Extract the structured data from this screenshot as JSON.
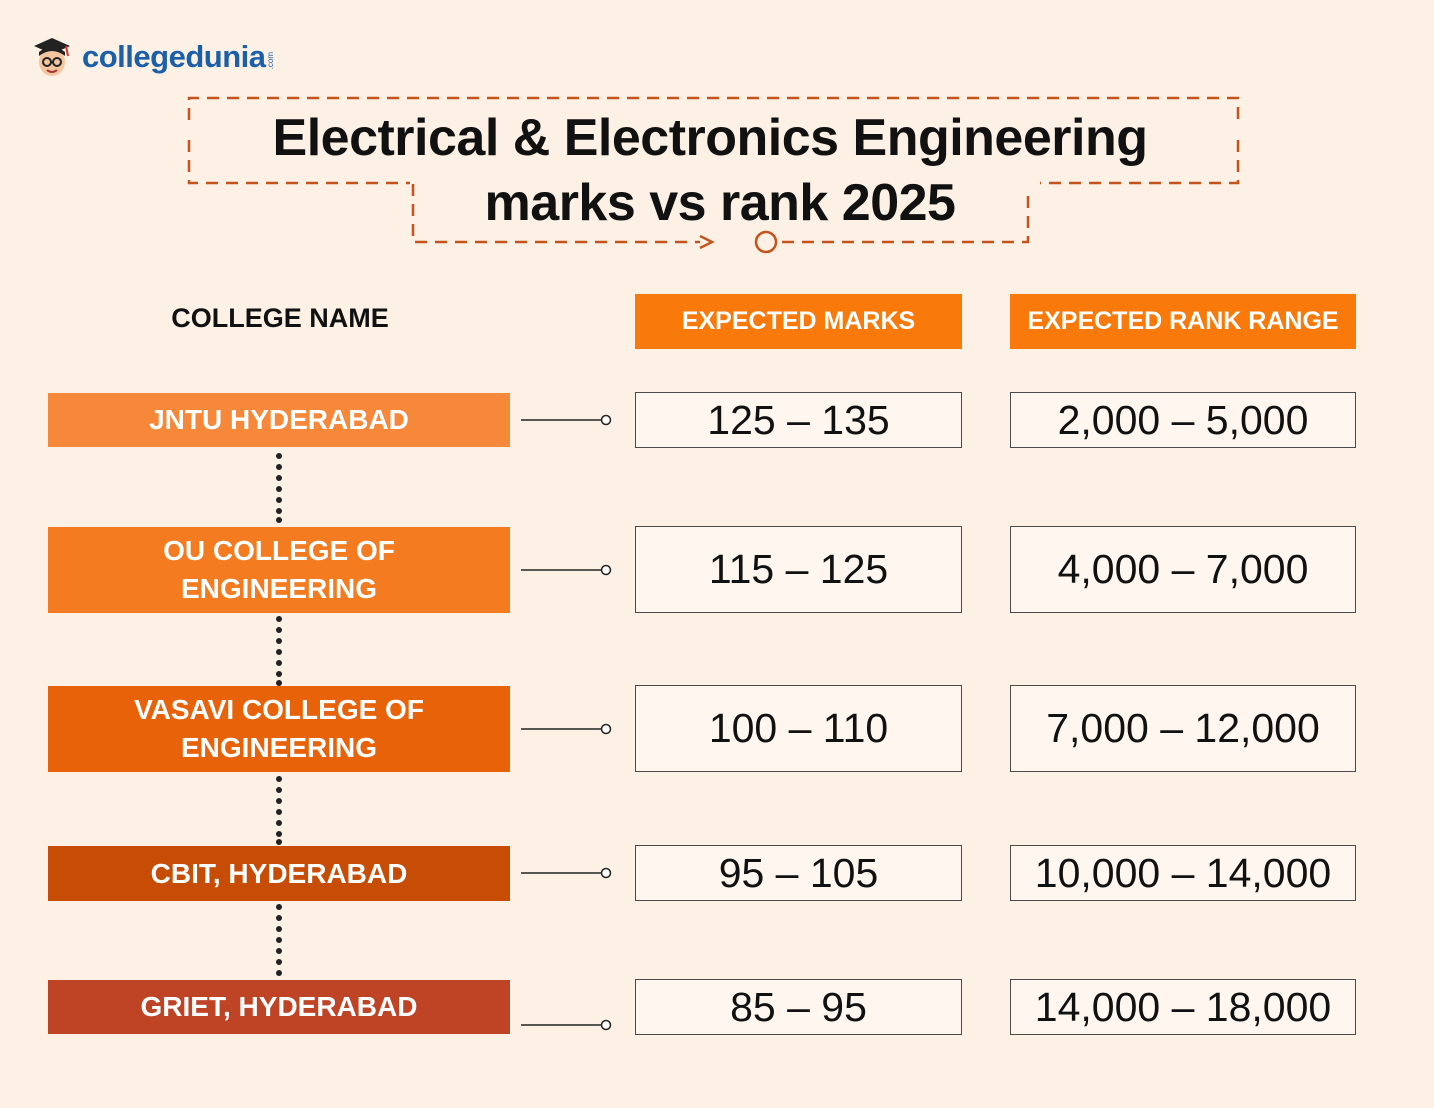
{
  "brand": {
    "name": "collegedunia",
    "suffix": ".com"
  },
  "title": {
    "line1": "Electrical & Electronics Engineering",
    "line2": "marks vs rank 2025"
  },
  "headers": {
    "college": "COLLEGE NAME",
    "marks": "EXPECTED MARKS",
    "rank": "EXPECTED RANK RANGE"
  },
  "rows": [
    {
      "college": "JNTU HYDERABAD",
      "marks": "125 – 135",
      "rank": "2,000 – 5,000",
      "color": "#f7883a"
    },
    {
      "college": "OU COLLEGE OF ENGINEERING",
      "marks": "115 – 125",
      "rank": "4,000 – 7,000",
      "color": "#f47b20"
    },
    {
      "college": "VASAVI COLLEGE OF ENGINEERING",
      "marks": "100 – 110",
      "rank": "7,000 – 12,000",
      "color": "#e86209"
    },
    {
      "college": "CBIT, HYDERABAD",
      "marks": "95 – 105",
      "rank": "10,000 – 14,000",
      "color": "#c74c06"
    },
    {
      "college": "GRIET, HYDERABAD",
      "marks": "85 – 95",
      "rank": "14,000 – 18,000",
      "color": "#bf4325"
    }
  ],
  "colors": {
    "accent": "#f97a0a",
    "dash": "#c4541c",
    "background": "#fdf1e6"
  }
}
